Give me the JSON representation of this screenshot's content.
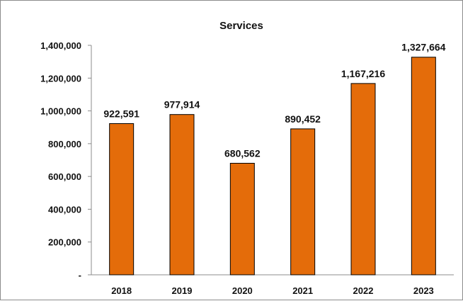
{
  "chart_data": {
    "type": "bar",
    "title": "Services",
    "xlabel": "",
    "ylabel": "",
    "categories": [
      "2018",
      "2019",
      "2020",
      "2021",
      "2022",
      "2023"
    ],
    "values": [
      922591,
      977914,
      680562,
      890452,
      1167216,
      1327664
    ],
    "value_labels": [
      "922,591",
      "977,914",
      "680,562",
      "890,452",
      "1,167,216",
      "1,327,664"
    ],
    "ylim": [
      0,
      1400000
    ],
    "y_ticks": [
      0,
      200000,
      400000,
      600000,
      800000,
      1000000,
      1200000,
      1400000
    ],
    "y_tick_labels": [
      "-",
      "200,000",
      "400,000",
      "600,000",
      "800,000",
      "1,000,000",
      "1,200,000",
      "1,400,000"
    ],
    "bar_color": "#E46C0A",
    "bar_edge_color": "#000000",
    "grid": false,
    "legend": "none"
  }
}
